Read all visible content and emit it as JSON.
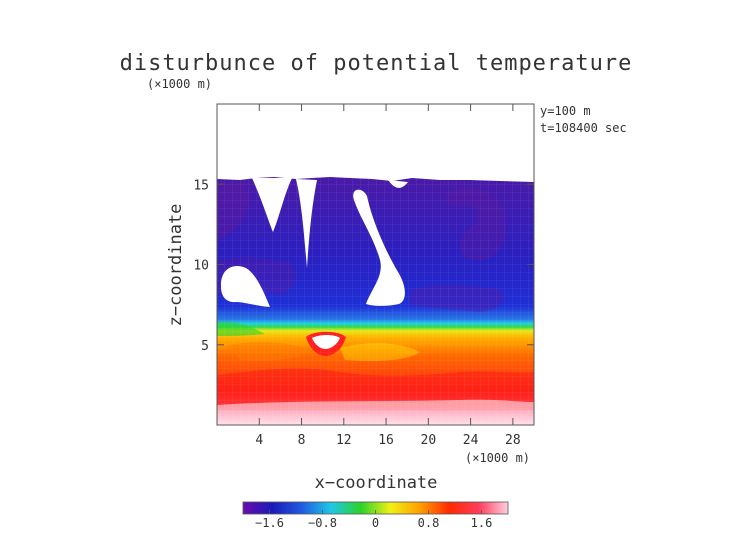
{
  "chart_data": {
    "type": "heatmap",
    "title": "disturbunce of potential temperature",
    "y_unit": "(×1000 m)",
    "x_unit": "(×1000 m)",
    "xlabel": "x−coordinate",
    "ylabel": "z−coordinate",
    "info_lines": [
      "y=100 m",
      "t=108400 sec"
    ],
    "xlim": [
      0,
      30
    ],
    "ylim": [
      0,
      20
    ],
    "x_ticks": [
      {
        "value": 4,
        "label": "4"
      },
      {
        "value": 8,
        "label": "8"
      },
      {
        "value": 12,
        "label": "12"
      },
      {
        "value": 16,
        "label": "16"
      },
      {
        "value": 20,
        "label": "20"
      },
      {
        "value": 24,
        "label": "24"
      },
      {
        "value": 28,
        "label": "28"
      }
    ],
    "y_ticks": [
      {
        "value": 5,
        "label": "5"
      },
      {
        "value": 10,
        "label": "10"
      },
      {
        "value": 15,
        "label": "15"
      }
    ],
    "colorbar": {
      "range": [
        -2,
        2
      ],
      "ticks": [
        {
          "value": -1.6,
          "label": "−1.6"
        },
        {
          "value": -0.8,
          "label": "−0.8"
        },
        {
          "value": 0,
          "label": "0"
        },
        {
          "value": 0.8,
          "label": "0.8"
        },
        {
          "value": 1.6,
          "label": "1.6"
        }
      ],
      "colors": [
        "#6a0dad",
        "#1a1ab8",
        "#1f5ce0",
        "#1fc8e6",
        "#2ad22a",
        "#f0f014",
        "#ffa000",
        "#ff2a00",
        "#ff3c5a",
        "#ffd0e0"
      ]
    }
  }
}
